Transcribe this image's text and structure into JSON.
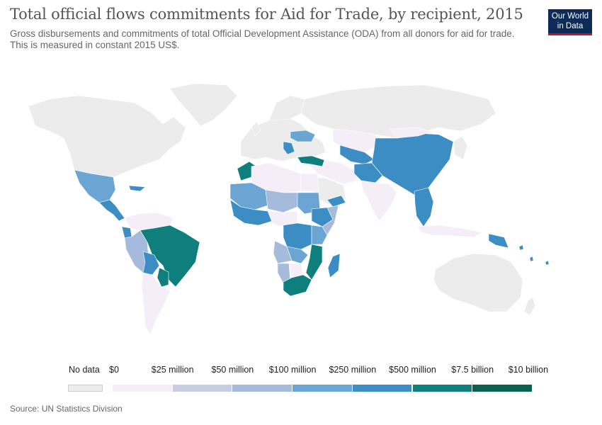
{
  "header": {
    "title": "Total official flows commitments for Aid for Trade, by recipient, 2015",
    "subtitle": "Gross disbursements and commitments of total Official Development Assistance (ODA) from all donors for aid for trade. This is measured in constant 2015 US$."
  },
  "logo": {
    "line1": "Our World",
    "line2": "in Data"
  },
  "legend": {
    "no_data_label": "No data",
    "no_data_color": "#ececec",
    "bins": [
      {
        "label": "$0",
        "color": "#f5eef8"
      },
      {
        "label": "$25 million",
        "color": "#c9cde3"
      },
      {
        "label": "$50 million",
        "color": "#a6bbdb"
      },
      {
        "label": "$100 million",
        "color": "#6aa5d3"
      },
      {
        "label": "$250 million",
        "color": "#3c8dc4"
      },
      {
        "label": "$500 million",
        "color": "#0e7f7c"
      },
      {
        "label": "$7.5 billion",
        "color": "#0a6150"
      }
    ],
    "end_label": "$10 billion"
  },
  "map_regions": [
    {
      "name": "north-america",
      "fill": "#ececec"
    },
    {
      "name": "greenland",
      "fill": "#ececec"
    },
    {
      "name": "mexico",
      "fill": "#6aa5d3"
    },
    {
      "name": "central-america",
      "fill": "#3c8dc4"
    },
    {
      "name": "caribbean",
      "fill": "#3c8dc4"
    },
    {
      "name": "colombia-venezuela",
      "fill": "#f5eef8"
    },
    {
      "name": "ecuador",
      "fill": "#3c8dc4"
    },
    {
      "name": "peru",
      "fill": "#a6bbdb"
    },
    {
      "name": "brazil",
      "fill": "#0e7f7c"
    },
    {
      "name": "bolivia",
      "fill": "#3c8dc4"
    },
    {
      "name": "paraguay",
      "fill": "#0e7f7c"
    },
    {
      "name": "chile-argentina",
      "fill": "#f5eef8"
    },
    {
      "name": "europe",
      "fill": "#ececec"
    },
    {
      "name": "scandinavia",
      "fill": "#ececec"
    },
    {
      "name": "uk",
      "fill": "#ececec"
    },
    {
      "name": "ukraine",
      "fill": "#6aa5d3"
    },
    {
      "name": "balkans",
      "fill": "#3c8dc4"
    },
    {
      "name": "russia",
      "fill": "#ececec"
    },
    {
      "name": "kazakhstan",
      "fill": "#f5eef8"
    },
    {
      "name": "central-asia",
      "fill": "#3c8dc4"
    },
    {
      "name": "china",
      "fill": "#3c8dc4"
    },
    {
      "name": "mongolia",
      "fill": "#f5eef8"
    },
    {
      "name": "middle-east",
      "fill": "#f5eef8"
    },
    {
      "name": "turkey",
      "fill": "#0e7f7c"
    },
    {
      "name": "saudi-arabia",
      "fill": "#ececec"
    },
    {
      "name": "yemen",
      "fill": "#3c8dc4"
    },
    {
      "name": "south-asia",
      "fill": "#3c8dc4"
    },
    {
      "name": "india",
      "fill": "#f5eef8"
    },
    {
      "name": "southeast-asia",
      "fill": "#3c8dc4"
    },
    {
      "name": "indonesia",
      "fill": "#f5eef8"
    },
    {
      "name": "papua-new-guinea",
      "fill": "#3c8dc4"
    },
    {
      "name": "japan",
      "fill": "#ececec"
    },
    {
      "name": "australia",
      "fill": "#ececec"
    },
    {
      "name": "new-zealand",
      "fill": "#ececec"
    },
    {
      "name": "morocco",
      "fill": "#0e7f7c"
    },
    {
      "name": "algeria-libya",
      "fill": "#f5eef8"
    },
    {
      "name": "egypt",
      "fill": "#f5eef8"
    },
    {
      "name": "west-africa",
      "fill": "#6aa5d3"
    },
    {
      "name": "sahel",
      "fill": "#a6bbdb"
    },
    {
      "name": "coastal-west-africa",
      "fill": "#3c8dc4"
    },
    {
      "name": "sudan",
      "fill": "#6aa5d3"
    },
    {
      "name": "ethiopia",
      "fill": "#3c8dc4"
    },
    {
      "name": "somalia",
      "fill": "#a6bbdb"
    },
    {
      "name": "central-africa",
      "fill": "#f5eef8"
    },
    {
      "name": "drc",
      "fill": "#3c8dc4"
    },
    {
      "name": "east-africa",
      "fill": "#6aa5d3"
    },
    {
      "name": "angola",
      "fill": "#a6bbdb"
    },
    {
      "name": "zambia",
      "fill": "#6aa5d3"
    },
    {
      "name": "mozambique",
      "fill": "#0e7f7c"
    },
    {
      "name": "namibia",
      "fill": "#a6bbdb"
    },
    {
      "name": "botswana",
      "fill": "#f5eef8"
    },
    {
      "name": "south-africa",
      "fill": "#0e7f7c"
    },
    {
      "name": "madagascar",
      "fill": "#3c8dc4"
    }
  ],
  "footer": {
    "source": "Source: UN Statistics Division"
  }
}
